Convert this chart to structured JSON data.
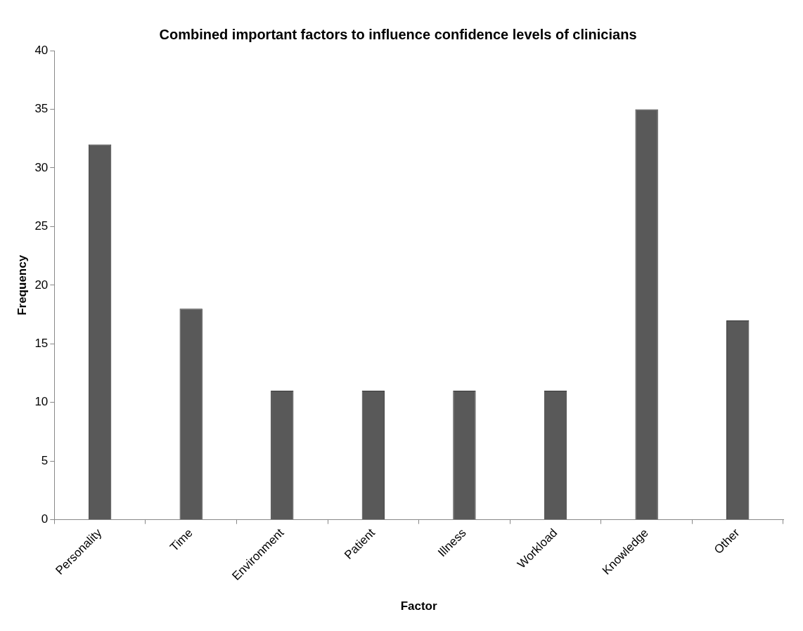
{
  "chart_data": {
    "type": "bar",
    "title": "Combined important factors to influence confidence levels of clinicians",
    "xlabel": "Factor",
    "ylabel": "Frequency",
    "categories": [
      "Personality",
      "Time",
      "Environment",
      "Patient",
      "Illness",
      "Workload",
      "Knowledge",
      "Other"
    ],
    "values": [
      32,
      18,
      11,
      11,
      11,
      11,
      35,
      17
    ],
    "color": "#595959",
    "ylim": [
      0,
      40
    ],
    "yticks": [
      0,
      5,
      10,
      15,
      20,
      25,
      30,
      35,
      40
    ],
    "grid": false,
    "legend": false
  }
}
